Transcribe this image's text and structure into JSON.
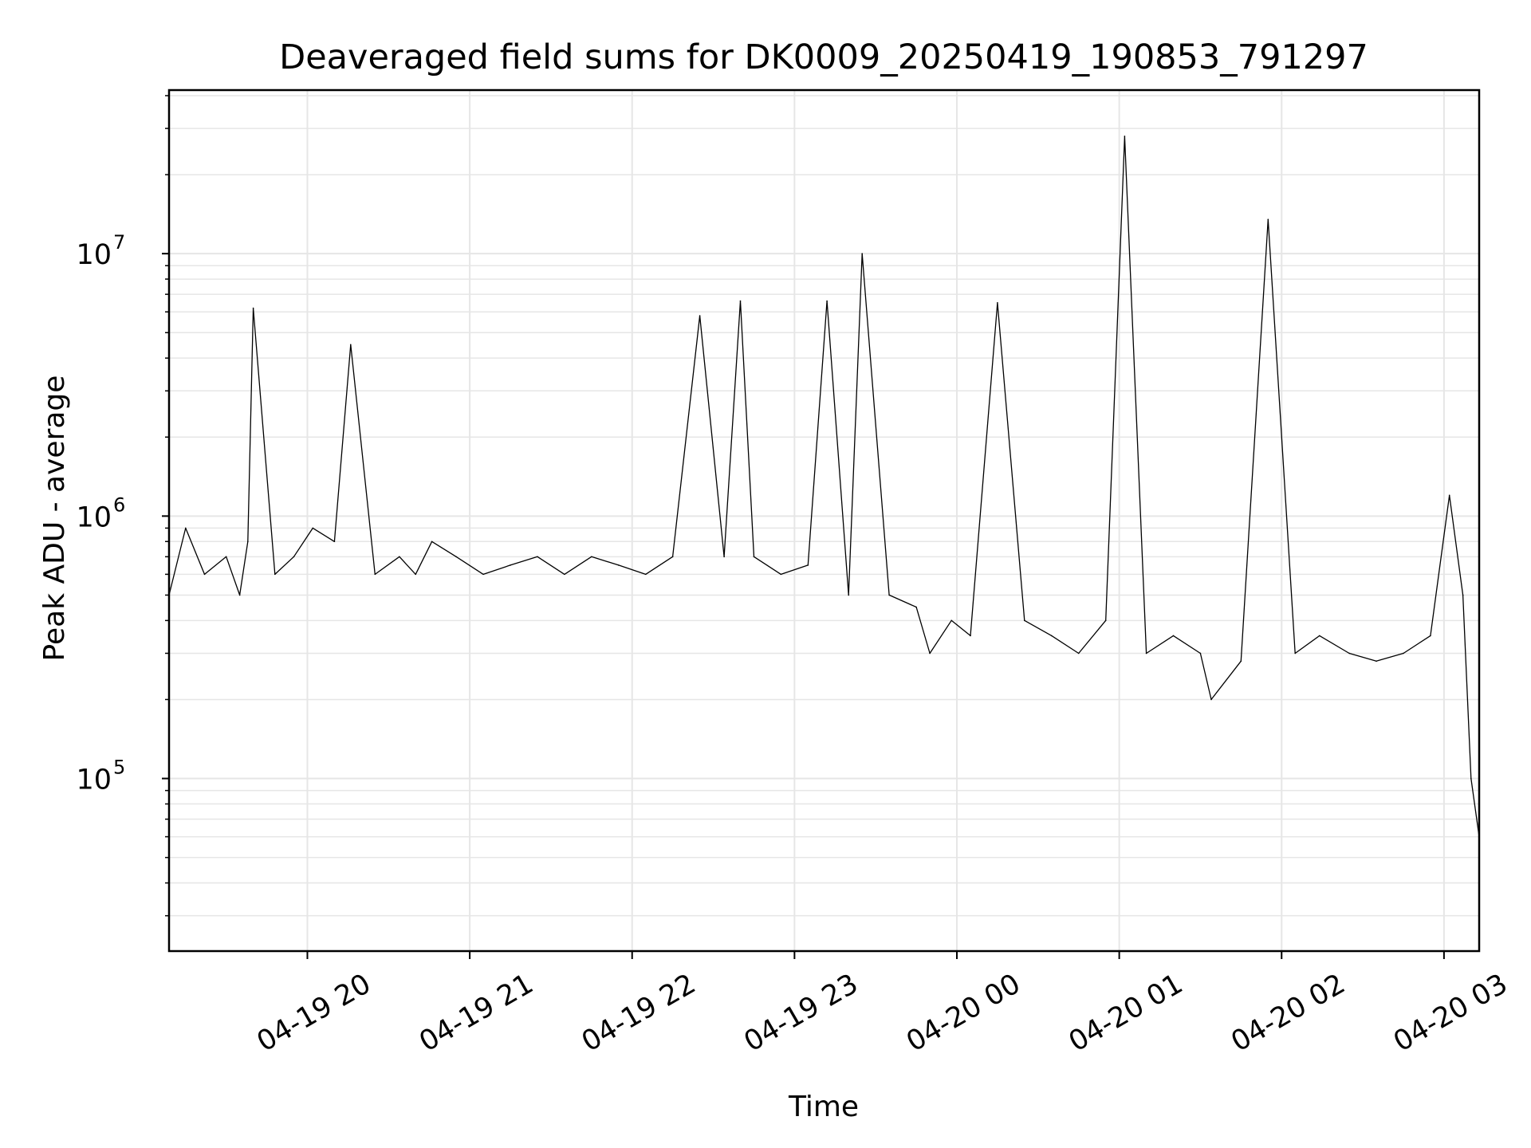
{
  "chart_data": {
    "type": "line",
    "title": "Deaveraged field sums for DK0009_20250419_190853_791297",
    "xlabel": "Time",
    "ylabel": "Peak ADU - average",
    "xscale": "time",
    "yscale": "log",
    "xlim": [
      "2025-04-19 19:08:53",
      "2025-04-20 03:13:00"
    ],
    "ylim": [
      22000,
      42000000
    ],
    "x_ticks": [
      {
        "time": "2025-04-19 20:00",
        "label": "04-19 20"
      },
      {
        "time": "2025-04-19 21:00",
        "label": "04-19 21"
      },
      {
        "time": "2025-04-19 22:00",
        "label": "04-19 22"
      },
      {
        "time": "2025-04-19 23:00",
        "label": "04-19 23"
      },
      {
        "time": "2025-04-20 00:00",
        "label": "04-20 00"
      },
      {
        "time": "2025-04-20 01:00",
        "label": "04-20 01"
      },
      {
        "time": "2025-04-20 02:00",
        "label": "04-20 02"
      },
      {
        "time": "2025-04-20 03:00",
        "label": "04-20 03"
      }
    ],
    "y_ticks": [
      {
        "value": 100000,
        "base": "10",
        "exp": "5"
      },
      {
        "value": 1000000,
        "base": "10",
        "exp": "6"
      },
      {
        "value": 10000000,
        "base": "10",
        "exp": "7"
      }
    ],
    "grid": true,
    "line_color": "#000000",
    "series": [
      {
        "x": [
          "2025-04-19 19:08:53",
          "2025-04-19 19:15",
          "2025-04-19 19:22",
          "2025-04-19 19:30",
          "2025-04-19 19:35",
          "2025-04-19 19:38",
          "2025-04-19 19:40",
          "2025-04-19 19:48",
          "2025-04-19 19:55",
          "2025-04-19 20:02",
          "2025-04-19 20:10",
          "2025-04-19 20:16",
          "2025-04-19 20:25",
          "2025-04-19 20:34",
          "2025-04-19 20:40",
          "2025-04-19 20:46",
          "2025-04-19 20:55",
          "2025-04-19 21:05",
          "2025-04-19 21:15",
          "2025-04-19 21:25",
          "2025-04-19 21:35",
          "2025-04-19 21:45",
          "2025-04-19 21:55",
          "2025-04-19 22:05",
          "2025-04-19 22:15",
          "2025-04-19 22:25",
          "2025-04-19 22:34",
          "2025-04-19 22:40",
          "2025-04-19 22:45",
          "2025-04-19 22:55",
          "2025-04-19 23:05",
          "2025-04-19 23:12",
          "2025-04-19 23:20",
          "2025-04-19 23:25",
          "2025-04-19 23:35",
          "2025-04-19 23:45",
          "2025-04-19 23:50",
          "2025-04-19 23:58",
          "2025-04-20 00:05",
          "2025-04-20 00:15",
          "2025-04-20 00:25",
          "2025-04-20 00:35",
          "2025-04-20 00:45",
          "2025-04-20 00:55",
          "2025-04-20 01:02",
          "2025-04-20 01:10",
          "2025-04-20 01:20",
          "2025-04-20 01:30",
          "2025-04-20 01:34",
          "2025-04-20 01:45",
          "2025-04-20 01:55",
          "2025-04-20 02:05",
          "2025-04-20 02:14",
          "2025-04-20 02:25",
          "2025-04-20 02:35",
          "2025-04-20 02:45",
          "2025-04-20 02:55",
          "2025-04-20 03:02",
          "2025-04-20 03:07",
          "2025-04-20 03:10",
          "2025-04-20 03:13"
        ],
        "y": [
          500000,
          900000,
          600000,
          700000,
          500000,
          800000,
          6200000,
          600000,
          700000,
          900000,
          800000,
          4500000,
          600000,
          700000,
          600000,
          800000,
          700000,
          600000,
          650000,
          700000,
          600000,
          700000,
          650000,
          600000,
          700000,
          5800000,
          700000,
          6600000,
          700000,
          600000,
          650000,
          6600000,
          500000,
          10000000,
          500000,
          450000,
          300000,
          400000,
          350000,
          6500000,
          400000,
          350000,
          300000,
          400000,
          28000000,
          300000,
          350000,
          300000,
          200000,
          280000,
          13500000,
          300000,
          350000,
          300000,
          280000,
          300000,
          350000,
          1200000,
          500000,
          100000,
          60000
        ]
      }
    ]
  }
}
